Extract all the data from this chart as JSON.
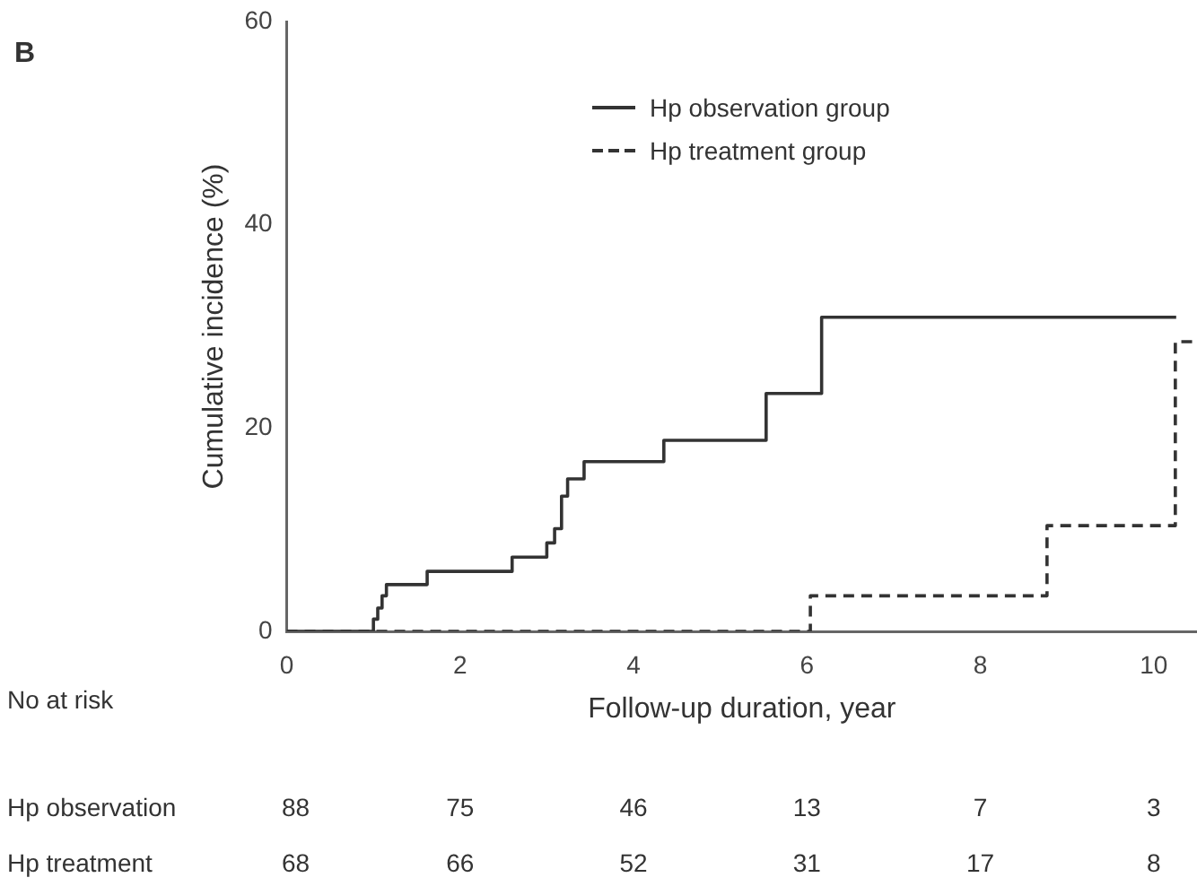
{
  "chart_data": {
    "type": "step",
    "ylabel": "Cumulative incidence (%)",
    "xlabel": "Follow-up duration, year",
    "xlim": [
      0,
      10.5
    ],
    "xticks": [
      0,
      2,
      4,
      6,
      8,
      10
    ],
    "ylim": [
      0,
      60
    ],
    "yticks": [
      0,
      20,
      40,
      60
    ],
    "grid": false,
    "legend": "top right",
    "marker": "none",
    "series": [
      {
        "name": "Hp observation group",
        "color": "#333333",
        "line_style": "solid",
        "x": [
          0,
          1.0,
          1.05,
          1.1,
          1.15,
          1.62,
          2.6,
          3.0,
          3.09,
          3.17,
          3.24,
          3.43,
          4.35,
          5.53,
          6.17,
          10.26
        ],
        "values": [
          0,
          1.2,
          2.3,
          3.5,
          4.6,
          5.9,
          7.3,
          8.7,
          10.1,
          13.3,
          15.0,
          16.7,
          18.8,
          23.4,
          30.9,
          30.9
        ]
      },
      {
        "name": "Hp treatment group",
        "color": "#333333",
        "line_style": "dashed",
        "x": [
          0,
          6.04,
          8.77,
          10.25,
          10.45
        ],
        "values": [
          0,
          3.5,
          10.4,
          28.5,
          28.5
        ]
      }
    ],
    "annotations": [
      "B",
      "No at risk",
      "Hp observation",
      "88",
      "75",
      "46",
      "13",
      "7",
      "3",
      "Hp treatment",
      "68",
      "66",
      "52",
      "31",
      "17",
      "8"
    ]
  }
}
